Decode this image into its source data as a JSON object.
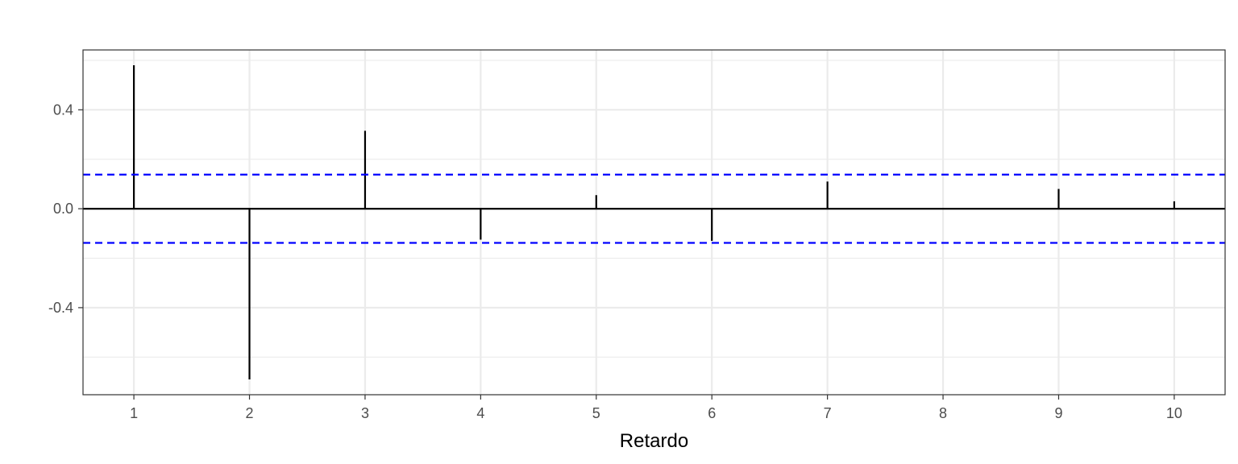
{
  "chart_data": {
    "type": "bar",
    "subtype": "correlogram",
    "title": "",
    "xlabel": "Retardo",
    "ylabel": "",
    "x": [
      1,
      2,
      3,
      4,
      5,
      6,
      7,
      8,
      9,
      10
    ],
    "values": [
      0.58,
      -0.69,
      0.315,
      -0.125,
      0.055,
      -0.13,
      0.11,
      0.0,
      0.08,
      0.03
    ],
    "x_ticks": [
      "1",
      "2",
      "3",
      "4",
      "5",
      "6",
      "7",
      "8",
      "9",
      "10"
    ],
    "y_ticks": [
      "-0.4",
      "0.0",
      "0.4"
    ],
    "y_tick_values": [
      -0.4,
      0.0,
      0.4
    ],
    "xlim": [
      0.56,
      10.44
    ],
    "ylim": [
      -0.752,
      0.642
    ],
    "confidence_band": 0.138,
    "colors": {
      "bars": "#000000",
      "zero_line": "#000000",
      "confidence_lines": "#0000ff",
      "grid": "#ebebeb",
      "panel_border": "#333333"
    },
    "grid": true,
    "legend": "none"
  }
}
